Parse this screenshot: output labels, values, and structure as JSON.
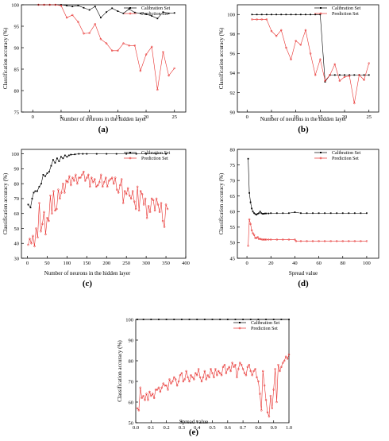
{
  "chart_data": [
    {
      "panel": "(a)",
      "type": "line",
      "xlabel": "Number of neurons in the hidden layer",
      "ylabel": "Classification accuracy (%)",
      "xlim": [
        -2,
        27
      ],
      "ylim": [
        75,
        100
      ],
      "xticks": [
        0,
        5,
        10,
        15,
        20,
        25
      ],
      "yticks": [
        75,
        80,
        85,
        90,
        95,
        100
      ],
      "legend_position": "top-right",
      "series": [
        {
          "name": "Calibration Set",
          "color": "#000000",
          "marker": "square",
          "x": [
            1,
            2,
            3,
            4,
            5,
            6,
            7,
            8,
            9,
            10,
            11,
            12,
            13,
            14,
            15,
            16,
            17,
            18,
            19,
            20,
            21,
            22,
            23,
            24,
            25
          ],
          "y": [
            100,
            100,
            100,
            100,
            100,
            99.8,
            99.6,
            99.8,
            99.3,
            98.8,
            99.6,
            97.0,
            98.3,
            99.2,
            98.5,
            98.0,
            99.0,
            98.2,
            98.0,
            97.8,
            97.4,
            96.8,
            98.3,
            98.0,
            98.1
          ]
        },
        {
          "name": "Prediction Set",
          "color": "#e8312f",
          "marker": "circle",
          "x": [
            1,
            2,
            3,
            4,
            5,
            6,
            7,
            8,
            9,
            10,
            11,
            12,
            13,
            14,
            15,
            16,
            17,
            18,
            19,
            20,
            21,
            22,
            23,
            24,
            25
          ],
          "y": [
            100,
            100,
            100,
            100,
            99.8,
            97.0,
            97.6,
            96.0,
            93.3,
            93.4,
            95.5,
            92.0,
            91.0,
            89.3,
            89.3,
            91.0,
            90.5,
            90.5,
            84.6,
            88.4,
            90.2,
            80.2,
            89.0,
            83.5,
            85.2
          ]
        }
      ]
    },
    {
      "panel": "(b)",
      "type": "line",
      "xlabel": "Number of neurons in the hidden layer",
      "ylabel": "Classification accuracy (%)",
      "xlim": [
        -2,
        27
      ],
      "ylim": [
        90,
        101
      ],
      "xticks": [
        0,
        5,
        10,
        15,
        20,
        25
      ],
      "yticks": [
        90,
        92,
        94,
        96,
        98,
        100
      ],
      "legend_position": "top-right",
      "series": [
        {
          "name": "Calibration Set",
          "color": "#000000",
          "marker": "square",
          "x": [
            1,
            2,
            3,
            4,
            5,
            6,
            7,
            8,
            9,
            10,
            11,
            12,
            13,
            14,
            15,
            16,
            17,
            18,
            19,
            20,
            21,
            22,
            23,
            24,
            25
          ],
          "y": [
            100,
            100,
            100,
            100,
            100,
            100,
            100,
            100,
            100,
            100,
            100,
            100,
            100,
            100,
            100,
            93.1,
            93.8,
            93.8,
            93.8,
            93.8,
            93.8,
            93.8,
            93.8,
            93.8,
            93.8
          ]
        },
        {
          "name": "Prediction Set",
          "color": "#e8312f",
          "marker": "circle",
          "x": [
            1,
            2,
            3,
            4,
            5,
            6,
            7,
            8,
            9,
            10,
            11,
            12,
            13,
            14,
            15,
            16,
            17,
            18,
            19,
            20,
            21,
            22,
            23,
            24,
            25
          ],
          "y": [
            99.5,
            99.5,
            99.5,
            99.5,
            98.3,
            97.8,
            98.4,
            96.6,
            95.4,
            97.3,
            96.9,
            98.4,
            96.0,
            93.8,
            95.4,
            93.2,
            93.8,
            94.9,
            93.2,
            93.6,
            93.7,
            90.9,
            93.8,
            93.3,
            95.0
          ]
        }
      ]
    },
    {
      "panel": "(c)",
      "type": "line",
      "xlabel": "Number of neurons in the hidden layer",
      "ylabel": "Classification accuracy (%)",
      "xlim": [
        -15,
        400
      ],
      "ylim": [
        30,
        103
      ],
      "xticks": [
        0,
        50,
        100,
        150,
        200,
        250,
        300,
        350,
        400
      ],
      "yticks": [
        30,
        40,
        50,
        60,
        70,
        80,
        90,
        100
      ],
      "legend_position": "top-right",
      "series": [
        {
          "name": "Calibration Set",
          "color": "#000000",
          "marker": "square",
          "x": [
            2,
            8,
            12,
            16,
            20,
            25,
            30,
            35,
            40,
            45,
            50,
            55,
            60,
            65,
            70,
            75,
            80,
            85,
            90,
            95,
            100,
            105,
            110,
            120,
            130,
            140,
            150,
            175,
            200,
            225,
            250,
            275,
            300,
            325,
            350
          ],
          "y": [
            66,
            64,
            70,
            74,
            75,
            75,
            78,
            80,
            86,
            85,
            87,
            88,
            92,
            96,
            94,
            97,
            95,
            98,
            97,
            99,
            98,
            99,
            99.5,
            99.7,
            100,
            100,
            100,
            100,
            100,
            100,
            100,
            100,
            100,
            100,
            100
          ]
        },
        {
          "name": "Prediction Set",
          "color": "#e8312f",
          "marker": "circle",
          "x": [
            2,
            6,
            10,
            14,
            18,
            22,
            26,
            30,
            34,
            38,
            42,
            46,
            50,
            54,
            58,
            62,
            66,
            70,
            74,
            78,
            82,
            86,
            90,
            94,
            98,
            102,
            106,
            110,
            114,
            118,
            122,
            126,
            130,
            134,
            138,
            142,
            146,
            150,
            154,
            158,
            162,
            166,
            170,
            174,
            178,
            182,
            186,
            190,
            194,
            198,
            202,
            206,
            210,
            214,
            218,
            222,
            226,
            230,
            234,
            238,
            242,
            246,
            250,
            254,
            258,
            262,
            266,
            270,
            274,
            278,
            282,
            286,
            290,
            294,
            298,
            302,
            306,
            310,
            314,
            318,
            322,
            326,
            330,
            334,
            338,
            342,
            346,
            350,
            354
          ],
          "y": [
            39,
            43,
            40,
            45,
            38,
            50,
            44,
            67,
            48,
            53,
            61,
            46,
            57,
            55,
            72,
            60,
            75,
            62,
            63,
            76,
            70,
            74,
            80,
            74,
            82,
            81,
            85,
            79,
            84,
            82,
            86,
            80,
            84,
            84,
            86,
            88,
            82,
            84,
            86,
            78,
            84,
            81,
            83,
            78,
            79,
            81,
            86,
            78,
            81,
            84,
            78,
            82,
            83,
            84,
            80,
            84,
            76,
            74,
            79,
            83,
            67,
            75,
            73,
            77,
            72,
            70,
            75,
            68,
            63,
            78,
            62,
            75,
            73,
            66,
            70,
            57,
            65,
            61,
            70,
            69,
            62,
            70,
            66,
            61,
            67,
            55,
            51,
            66,
            63
          ]
        }
      ]
    },
    {
      "panel": "(d)",
      "type": "line",
      "xlabel": "Spread value",
      "ylabel": "Classification accuracy (%)",
      "xlim": [
        -8,
        110
      ],
      "ylim": [
        45,
        80
      ],
      "xticks": [
        0,
        20,
        40,
        60,
        80,
        100
      ],
      "yticks": [
        45,
        50,
        55,
        60,
        65,
        70,
        75,
        80
      ],
      "legend_position": "top-right",
      "series": [
        {
          "name": "Calibration Set",
          "color": "#000000",
          "marker": "square",
          "x": [
            1,
            2,
            3,
            4,
            5,
            6,
            7,
            8,
            9,
            10,
            11,
            12,
            13,
            14,
            15,
            16,
            18,
            20,
            25,
            30,
            35,
            40,
            45,
            50,
            55,
            60,
            65,
            70,
            75,
            80,
            85,
            90,
            95,
            100
          ],
          "y": [
            77,
            66,
            63,
            61,
            60,
            59.5,
            59.2,
            59,
            59.3,
            59.5,
            60,
            59.5,
            59.3,
            59.3,
            59.4,
            59.4,
            59.4,
            59.5,
            59.5,
            59.5,
            59.5,
            59.8,
            59.5,
            59.5,
            59.5,
            59.5,
            59.5,
            59.5,
            59.5,
            59.5,
            59.5,
            59.5,
            59.5,
            59.5
          ]
        },
        {
          "name": "Prediction Set",
          "color": "#e8312f",
          "marker": "circle",
          "x": [
            1,
            2,
            3,
            4,
            5,
            6,
            7,
            8,
            9,
            10,
            11,
            12,
            13,
            14,
            15,
            16,
            18,
            20,
            25,
            30,
            35,
            40,
            41,
            45,
            50,
            55,
            60,
            65,
            70,
            75,
            80,
            85,
            90,
            95,
            100
          ],
          "y": [
            49,
            57.5,
            56,
            54,
            53,
            52.5,
            51.5,
            51.5,
            51.8,
            51.2,
            51.2,
            51.1,
            51.0,
            51.0,
            51.0,
            51.0,
            51.0,
            51.0,
            51.0,
            51.0,
            51.0,
            51.0,
            50.5,
            50.5,
            50.5,
            50.5,
            50.5,
            50.5,
            50.5,
            50.5,
            50.5,
            50.5,
            50.5,
            50.5,
            50.5
          ]
        }
      ]
    },
    {
      "panel": "(e)",
      "type": "line",
      "xlabel": "Spread value",
      "ylabel": "Classification accuracy (%)",
      "xlim": [
        0,
        1.0
      ],
      "ylim": [
        50,
        100
      ],
      "xticks": [
        0.0,
        0.1,
        0.2,
        0.3,
        0.4,
        0.5,
        0.6,
        0.7,
        0.8,
        0.9,
        1.0
      ],
      "yticks": [
        50,
        60,
        70,
        80,
        90,
        100
      ],
      "legend_position": "top-right",
      "series": [
        {
          "name": "Calibration Set",
          "color": "#000000",
          "marker": "square",
          "x": [
            0.01,
            0.05,
            0.1,
            0.15,
            0.2,
            0.25,
            0.3,
            0.35,
            0.4,
            0.45,
            0.5,
            0.55,
            0.6,
            0.65,
            0.7,
            0.75,
            0.8,
            0.85,
            0.9,
            0.95,
            1.0
          ],
          "y": [
            100,
            100,
            100,
            100,
            100,
            100,
            100,
            100,
            100,
            100,
            100,
            100,
            100,
            100,
            100,
            100,
            100,
            100,
            100,
            100,
            100
          ]
        },
        {
          "name": "Prediction Set",
          "color": "#e8312f",
          "marker": "circle",
          "x": [
            0.01,
            0.02,
            0.03,
            0.04,
            0.05,
            0.06,
            0.07,
            0.08,
            0.09,
            0.1,
            0.11,
            0.12,
            0.13,
            0.14,
            0.15,
            0.16,
            0.17,
            0.18,
            0.19,
            0.2,
            0.21,
            0.22,
            0.23,
            0.24,
            0.25,
            0.26,
            0.27,
            0.28,
            0.29,
            0.3,
            0.31,
            0.32,
            0.33,
            0.34,
            0.35,
            0.36,
            0.37,
            0.38,
            0.39,
            0.4,
            0.41,
            0.42,
            0.43,
            0.44,
            0.45,
            0.46,
            0.47,
            0.48,
            0.49,
            0.5,
            0.51,
            0.52,
            0.53,
            0.54,
            0.55,
            0.56,
            0.57,
            0.58,
            0.59,
            0.6,
            0.61,
            0.62,
            0.63,
            0.64,
            0.65,
            0.66,
            0.67,
            0.68,
            0.69,
            0.7,
            0.71,
            0.72,
            0.73,
            0.74,
            0.75,
            0.76,
            0.77,
            0.78,
            0.79,
            0.8,
            0.81,
            0.82,
            0.83,
            0.84,
            0.85,
            0.86,
            0.87,
            0.88,
            0.89,
            0.9,
            0.91,
            0.92,
            0.93,
            0.94,
            0.95,
            0.96,
            0.97,
            0.98,
            0.99,
            1.0
          ],
          "y": [
            57,
            56,
            67,
            62,
            63,
            61,
            64,
            61,
            65,
            63,
            64,
            62,
            66,
            66,
            67,
            65,
            67,
            69,
            68,
            68,
            66,
            71,
            69,
            70,
            72,
            71,
            68,
            70,
            73,
            74,
            70,
            71,
            75,
            72,
            70,
            73,
            72,
            71,
            74,
            73,
            76,
            72,
            70,
            72,
            75,
            71,
            73,
            72,
            76,
            74,
            72,
            76,
            73,
            75,
            74,
            73,
            77,
            78,
            74,
            76,
            77,
            75,
            79,
            77,
            78,
            72,
            76,
            79,
            78,
            76,
            74,
            73,
            77,
            78,
            75,
            73,
            75,
            76,
            72,
            70,
            64,
            56,
            75,
            68,
            61,
            55,
            53,
            63,
            57,
            66,
            76,
            60,
            78,
            75,
            77,
            79,
            80,
            82,
            81,
            83
          ]
        }
      ]
    }
  ]
}
